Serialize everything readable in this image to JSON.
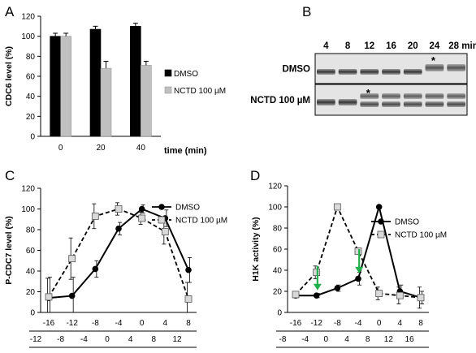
{
  "panel_labels": [
    "A",
    "B",
    "C",
    "D"
  ],
  "chart_data": [
    {
      "panel": "A",
      "type": "bar",
      "ylabel": "CDC6 level (%)",
      "xlabel": "time (min)",
      "ylim": [
        0,
        120
      ],
      "yticks": [
        0,
        20,
        40,
        60,
        80,
        100,
        120
      ],
      "categories": [
        "0",
        "20",
        "40"
      ],
      "series": [
        {
          "name": "DMSO",
          "color": "#000000",
          "values": [
            100,
            107,
            110
          ],
          "errors": [
            3,
            3,
            3
          ]
        },
        {
          "name": "NCTD 100 µM",
          "color": "#c0c0c0",
          "values": [
            100,
            68,
            71
          ],
          "errors": [
            3,
            7,
            4
          ]
        }
      ],
      "legend_position": "right"
    },
    {
      "panel": "C",
      "type": "line",
      "ylabel": "P-CDC7 level (%)",
      "ylim": [
        0,
        120
      ],
      "yticks": [
        0,
        20,
        40,
        60,
        80,
        100,
        120
      ],
      "x_row1": [
        "-16",
        "-12",
        "-8",
        "-4",
        "0",
        "4",
        "8"
      ],
      "x_row2": [
        "-12",
        "-8",
        "-4",
        "0",
        "4",
        "8",
        "12"
      ],
      "series": [
        {
          "name": "DMSO",
          "style": "solid",
          "marker": "circle",
          "values": [
            14,
            16,
            42,
            81,
            100,
            91,
            41
          ],
          "errors": [
            20,
            18,
            8,
            6,
            4,
            8,
            12
          ]
        },
        {
          "name": "NCTD 100 µM",
          "style": "dashed",
          "marker": "square",
          "values": [
            15,
            52,
            93,
            100,
            91,
            78,
            13
          ],
          "errors": [
            18,
            20,
            12,
            6,
            6,
            12,
            16
          ]
        }
      ],
      "legend_position": "top-right"
    },
    {
      "panel": "D",
      "type": "line",
      "ylabel": "H1K activity (%)",
      "ylim": [
        0,
        120
      ],
      "yticks": [
        0,
        20,
        40,
        60,
        80,
        100,
        120
      ],
      "x_row1": [
        "-16",
        "-12",
        "-8",
        "-4",
        "0",
        "4",
        "8"
      ],
      "x_row2": [
        "-8",
        "-4",
        "0",
        "4",
        "8",
        "12",
        "16"
      ],
      "series": [
        {
          "name": "DMSO",
          "style": "solid",
          "marker": "circle",
          "values": [
            16,
            16,
            23,
            32,
            100,
            20,
            14
          ],
          "errors": [
            2,
            2,
            3,
            6,
            0,
            6,
            6
          ]
        },
        {
          "name": "NCTD 100 µM",
          "style": "dashed",
          "marker": "square",
          "values": [
            17,
            38,
            100,
            58,
            18,
            16,
            14
          ],
          "errors": [
            3,
            6,
            0,
            3,
            6,
            8,
            10
          ]
        }
      ],
      "arrows_at_x": [
        1,
        3
      ],
      "legend_position": "top-right"
    }
  ],
  "blot": {
    "panel": "B",
    "time_labels": [
      "4",
      "8",
      "12",
      "16",
      "20",
      "24",
      "28 min"
    ],
    "rows": [
      {
        "label": "DMSO",
        "star_lane": 5
      },
      {
        "label": "NCTD 100 µM",
        "star_lane": 2
      }
    ],
    "star": "*"
  },
  "colors": {
    "arrow": "#22b04a",
    "nctd_fill": "#d9d9d9",
    "nctd_bar": "#c0c0c0"
  }
}
